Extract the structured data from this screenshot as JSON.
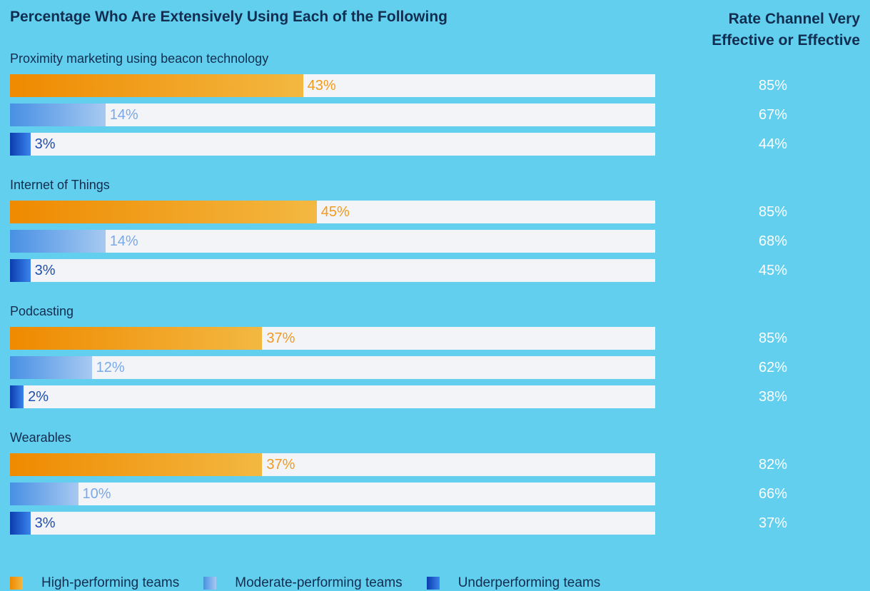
{
  "header": {
    "left_title": "Percentage Who Are Extensively Using Each of the Following",
    "right_title": "Rate Channel Very Effective or Effective"
  },
  "colors": {
    "background": "#62cfee",
    "high": "#ef8a00",
    "moderate": "#4890e4",
    "under": "#0c3dae",
    "track": "#f3f4f7"
  },
  "chart_data": {
    "type": "bar",
    "orientation": "horizontal",
    "categories": [
      "Proximity marketing using beacon technology",
      "Internet of Things",
      "Podcasting",
      "Wearables"
    ],
    "series": [
      {
        "name": "High-performing teams",
        "values": [
          43,
          45,
          37,
          37
        ],
        "effective_rate": [
          85,
          85,
          85,
          82
        ]
      },
      {
        "name": "Moderate-performing teams",
        "values": [
          14,
          14,
          12,
          10
        ],
        "effective_rate": [
          67,
          68,
          62,
          66
        ]
      },
      {
        "name": "Underperforming teams",
        "values": [
          3,
          3,
          2,
          3
        ],
        "effective_rate": [
          44,
          45,
          38,
          37
        ]
      }
    ],
    "value_suffix": "%",
    "xlim": [
      0,
      100
    ],
    "legend_position": "bottom"
  }
}
